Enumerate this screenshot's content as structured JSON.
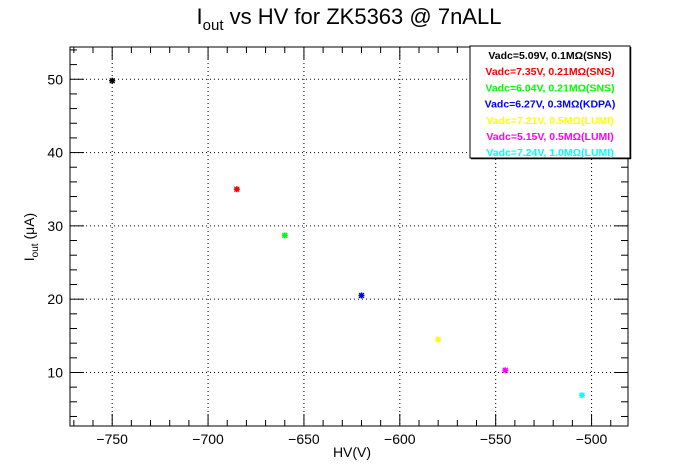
{
  "chart_data": {
    "type": "scatter",
    "title_main": "I",
    "title_sub": "out",
    "title_rest": " vs HV for ZK5363 @ 7nALL",
    "xlabel": "HV(V)",
    "ylabel_main": "I",
    "ylabel_sub": "out",
    "ylabel_rest": " (μA)",
    "xlim": [
      -772,
      -481
    ],
    "ylim": [
      2.7,
      54.4
    ],
    "x_ticks": [
      -750,
      -700,
      -650,
      -600,
      -550,
      -500
    ],
    "y_ticks": [
      10,
      20,
      30,
      40,
      50
    ],
    "x_tick_labels": [
      "−750",
      "−700",
      "−650",
      "−600",
      "−550",
      "−500"
    ],
    "y_tick_labels": [
      "10",
      "20",
      "30",
      "40",
      "50"
    ],
    "grid": true,
    "legend_position": "top-right",
    "series": [
      {
        "name": "Vadc=5.09V, 0.1MΩ(SNS)",
        "color": "#000000",
        "points": [
          {
            "x": -750,
            "y": 49.8
          }
        ]
      },
      {
        "name": "Vadc=7.35V, 0.21MΩ(SNS)",
        "color": "#ff0000",
        "points": [
          {
            "x": -685,
            "y": 35.0
          }
        ]
      },
      {
        "name": "Vadc=6.04V, 0.21MΩ(SNS)",
        "color": "#00ff00",
        "points": [
          {
            "x": -660,
            "y": 28.7
          }
        ]
      },
      {
        "name": "Vadc=6.27V, 0.3MΩ(KDPA)",
        "color": "#0000ff",
        "points": [
          {
            "x": -620,
            "y": 20.5
          }
        ]
      },
      {
        "name": "Vadc=7.21V, 0.5MΩ(LUMI)",
        "color": "#ffff00",
        "points": [
          {
            "x": -580,
            "y": 14.5
          }
        ]
      },
      {
        "name": "Vadc=5.15V, 0.5MΩ(LUMI)",
        "color": "#ff00ff",
        "points": [
          {
            "x": -545,
            "y": 10.3
          }
        ]
      },
      {
        "name": "Vadc=7.24V, 1.0MΩ(LUMI)",
        "color": "#00ffff",
        "points": [
          {
            "x": -505,
            "y": 6.9
          }
        ]
      }
    ]
  }
}
